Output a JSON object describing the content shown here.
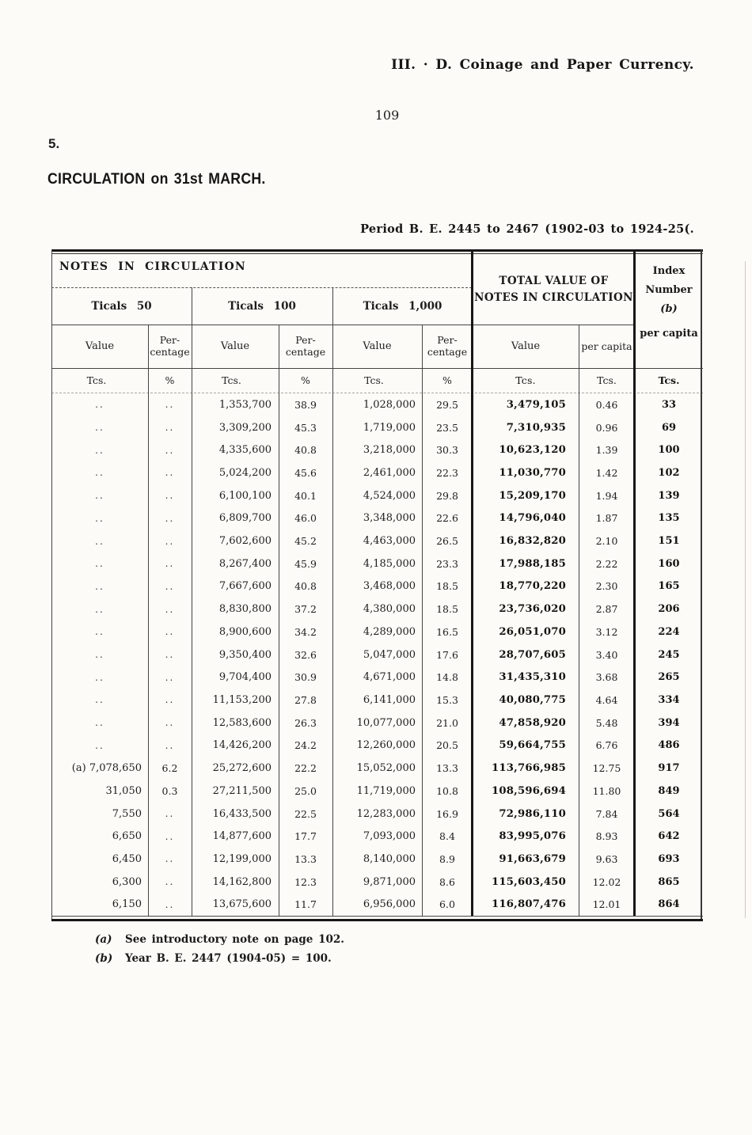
{
  "page": {
    "header_right": "III. · D. Coinage and Paper Currency.",
    "page_number": "109",
    "section_number": "5.",
    "heading": "CIRCULATION on 31st MARCH.",
    "period_caption": "Period B. E. 2445 to 2467 (1902-03 to 1924-25(."
  },
  "table": {
    "notes_group_label": "NOTES IN CIRCULATION",
    "total_group_label_line1": "TOTAL VALUE OF",
    "total_group_label_line2": "NOTES IN CIRCULATION",
    "index_label_line1": "Index",
    "index_label_line2": "Number",
    "index_label_line3": "(b)",
    "index_sub_label": "per capita",
    "ticals_50": "Ticals 50",
    "ticals_100": "Ticals 100",
    "ticals_1000": "Ticals 1,000",
    "value_label": "Value",
    "percentage_line1": "Per-",
    "percentage_line2": "centage",
    "per_capita_label": "per capita",
    "units": [
      "Tcs.",
      "%",
      "Tcs.",
      "%",
      "Tcs.",
      "%",
      "Tcs.",
      "Tcs.",
      "Tcs."
    ],
    "rows": [
      [
        "..",
        "..",
        "1,353,700",
        "38.9",
        "1,028,000",
        "29.5",
        "3,479,105",
        "0.46",
        "33"
      ],
      [
        "..",
        "..",
        "3,309,200",
        "45.3",
        "1,719,000",
        "23.5",
        "7,310,935",
        "0.96",
        "69"
      ],
      [
        "..",
        "..",
        "4,335,600",
        "40.8",
        "3,218,000",
        "30.3",
        "10,623,120",
        "1.39",
        "100"
      ],
      [
        "..",
        "..",
        "5,024,200",
        "45.6",
        "2,461,000",
        "22.3",
        "11,030,770",
        "1.42",
        "102"
      ],
      [
        "..",
        "..",
        "6,100,100",
        "40.1",
        "4,524,000",
        "29.8",
        "15,209,170",
        "1.94",
        "139"
      ],
      [
        "..",
        "..",
        "6,809,700",
        "46.0",
        "3,348,000",
        "22.6",
        "14,796,040",
        "1.87",
        "135"
      ],
      [
        "..",
        "..",
        "7,602,600",
        "45.2",
        "4,463,000",
        "26.5",
        "16,832,820",
        "2.10",
        "151"
      ],
      [
        "..",
        "..",
        "8,267,400",
        "45.9",
        "4,185,000",
        "23.3",
        "17,988,185",
        "2.22",
        "160"
      ],
      [
        "..",
        "..",
        "7,667,600",
        "40.8",
        "3,468,000",
        "18.5",
        "18,770,220",
        "2.30",
        "165"
      ],
      [
        "..",
        "..",
        "8,830,800",
        "37.2",
        "4,380,000",
        "18.5",
        "23,736,020",
        "2.87",
        "206"
      ],
      [
        "..",
        "..",
        "8,900,600",
        "34.2",
        "4,289,000",
        "16.5",
        "26,051,070",
        "3.12",
        "224"
      ],
      [
        "..",
        "..",
        "9,350,400",
        "32.6",
        "5,047,000",
        "17.6",
        "28,707,605",
        "3.40",
        "245"
      ],
      [
        "..",
        "..",
        "9,704,400",
        "30.9",
        "4,671,000",
        "14.8",
        "31,435,310",
        "3.68",
        "265"
      ],
      [
        "..",
        "..",
        "11,153,200",
        "27.8",
        "6,141,000",
        "15.3",
        "40,080,775",
        "4.64",
        "334"
      ],
      [
        "..",
        "..",
        "12,583,600",
        "26.3",
        "10,077,000",
        "21.0",
        "47,858,920",
        "5.48",
        "394"
      ],
      [
        "..",
        "..",
        "14,426,200",
        "24.2",
        "12,260,000",
        "20.5",
        "59,664,755",
        "6.76",
        "486"
      ],
      [
        "(a) 7,078,650",
        "6.2",
        "25,272,600",
        "22.2",
        "15,052,000",
        "13.3",
        "113,766,985",
        "12.75",
        "917"
      ],
      [
        "31,050",
        "0.3",
        "27,211,500",
        "25.0",
        "11,719,000",
        "10.8",
        "108,596,694",
        "11.80",
        "849"
      ],
      [
        "7,550",
        "..",
        "16,433,500",
        "22.5",
        "12,283,000",
        "16.9",
        "72,986,110",
        "7.84",
        "564"
      ],
      [
        "6,650",
        "..",
        "14,877,600",
        "17.7",
        "7,093,000",
        "8.4",
        "83,995,076",
        "8.93",
        "642"
      ],
      [
        "6,450",
        "..",
        "12,199,000",
        "13.3",
        "8,140,000",
        "8.9",
        "91,663,679",
        "9.63",
        "693"
      ],
      [
        "6,300",
        "..",
        "14,162,800",
        "12.3",
        "9,871,000",
        "8.6",
        "115,603,450",
        "12.02",
        "865"
      ],
      [
        "6,150",
        "..",
        "13,675,600",
        "11.7",
        "6,956,000",
        "6.0",
        "116,807,476",
        "12.01",
        "864"
      ]
    ]
  },
  "footnotes": [
    {
      "label": "(a)",
      "text": "See introductory note on page 102."
    },
    {
      "label": "(b)",
      "text": "Year B. E. 2447 (1904-05) = 100."
    }
  ]
}
